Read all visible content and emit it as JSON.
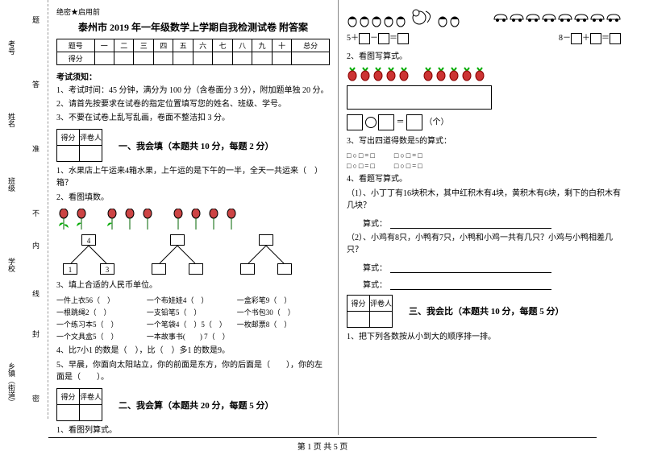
{
  "header": {
    "secret": "绝密★启用前",
    "title": "泰州市 2019 年一年级数学上学期自我检测试卷 附答案"
  },
  "side": {
    "labels": [
      "考号",
      "姓名",
      "班级",
      "学校",
      "乡镇（街道）"
    ],
    "dash_labels": [
      "题",
      "答",
      "准",
      "不",
      "内",
      "线",
      "封",
      "密"
    ]
  },
  "score_table": {
    "row1": [
      "题号",
      "一",
      "二",
      "三",
      "四",
      "五",
      "六",
      "七",
      "八",
      "九",
      "十",
      "总分"
    ],
    "row2": "得分"
  },
  "notice": {
    "title": "考试须知：",
    "items": [
      "1、考试时间：45 分钟，满分为 100 分（含卷面分 3 分），附加题单独 20 分。",
      "2、请首先按要求在试卷的指定位置填写您的姓名、班级、学号。",
      "3、不要在试卷上乱写乱画，卷面不整洁扣 3 分。"
    ]
  },
  "sections": {
    "s1": {
      "head": [
        "得分",
        "评卷人"
      ],
      "title": "一、我会填（本题共 10 分，每题 2 分）"
    },
    "s2": {
      "head": [
        "得分",
        "评卷人"
      ],
      "title": "二、我会算（本题共 20 分，每题 5 分）"
    },
    "s3": {
      "head": [
        "得分",
        "评卷人"
      ],
      "title": "三、我会比（本题共 10 分，每题 5 分）"
    }
  },
  "q1_1": "1、水果店上午运来4箱水果，上午运的是下午的一半，全天一共运来（　）箱？",
  "q1_2": "2、看图填数。",
  "q1_3": {
    "title": "3、填上合适的人民币单位。",
    "items": [
      "一件上衣56（　）",
      "一个布娃娃4（　）",
      "一盒彩笔9（　）",
      "一根跳绳2（　）",
      "一支铅笔5（　）",
      "一个书包30（　）",
      "一个练习本5（　）",
      "一个笔袋4（　）5（　）",
      "一枚邮票8（　）",
      "一个文具盒5（　）",
      "一本故事书(　　) 7（　）"
    ]
  },
  "q1_4": "4、比7小1 的数是（　），比（　）多1 的数是9。",
  "q1_5": "5、早晨，你面向太阳站立，你的前面是东方，你的后面是（　　），你的左面是（　　）。",
  "q2_1": "1、看图列算式。",
  "right": {
    "expr1_prefix": "5＋",
    "expr1_mid": "－",
    "expr1_eq": "＝",
    "expr2_prefix": "8－",
    "expr2_mid": "＋",
    "expr2_eq": "＝",
    "q2": "2、看图写算式。",
    "unit": "（个）",
    "q3": "3、写出四道得数是5的算式：",
    "dots_row": "□○□=□　　□○□=□",
    "q4": "4、看题写算式。",
    "q4_1": "（1）、小丁丁有16块积木，其中红积木有4块，黄积木有6块，剩下的白积木有几块？",
    "q4_2": "（2）、小鸡有8只，小鸭有7只，小鸭和小鸡一共有几只？小鸡与小鸭相差几只？",
    "calc": "算式：",
    "q3b_1": "1、把下列各数按从小到大的顺序排一排。"
  },
  "footer": {
    "text": "第 1 页 共 5 页"
  },
  "tree_vals": {
    "t1_top": "4",
    "t1_l": "1",
    "t1_r": "3"
  }
}
